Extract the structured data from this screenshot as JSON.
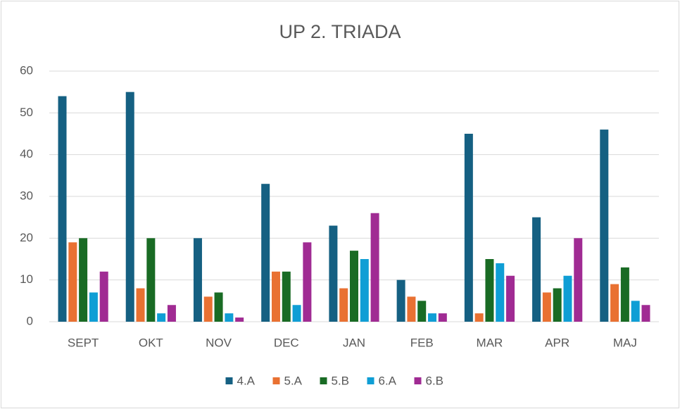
{
  "chart_data": {
    "type": "bar",
    "title": "UP 2. TRIADA",
    "categories": [
      "SEPT",
      "OKT",
      "NOV",
      "DEC",
      "JAN",
      "FEB",
      "MAR",
      "APR",
      "MAJ"
    ],
    "series": [
      {
        "name": "4.A",
        "color": "#156082",
        "values": [
          54,
          55,
          20,
          33,
          23,
          10,
          45,
          25,
          46
        ]
      },
      {
        "name": "5.A",
        "color": "#e97132",
        "values": [
          19,
          8,
          6,
          12,
          8,
          6,
          2,
          7,
          9
        ]
      },
      {
        "name": "5.B",
        "color": "#196b24",
        "values": [
          20,
          20,
          7,
          12,
          17,
          5,
          15,
          8,
          13
        ]
      },
      {
        "name": "6.A",
        "color": "#0f9ed5",
        "values": [
          7,
          2,
          2,
          4,
          15,
          2,
          14,
          11,
          5
        ]
      },
      {
        "name": "6.B",
        "color": "#a02b93",
        "values": [
          12,
          4,
          1,
          19,
          26,
          2,
          11,
          20,
          4
        ]
      }
    ],
    "ylim": [
      0,
      60
    ],
    "yticks": [
      0,
      10,
      20,
      30,
      40,
      50,
      60
    ],
    "grid": true,
    "legend": "bottom"
  }
}
